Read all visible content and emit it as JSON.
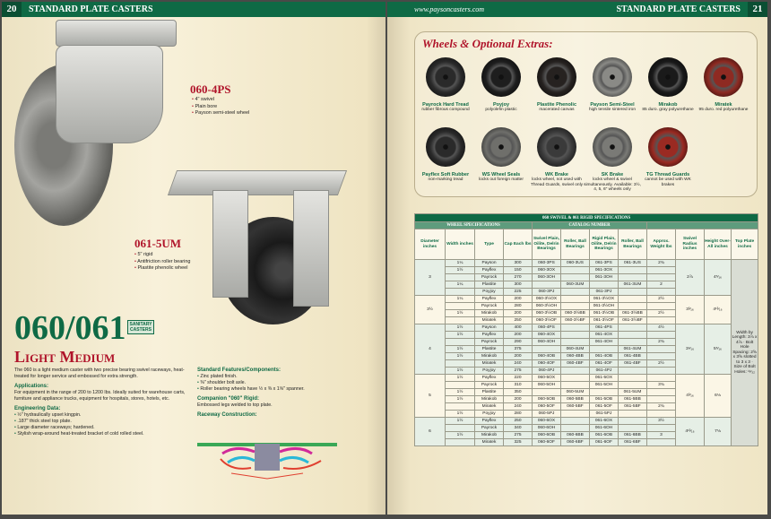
{
  "left_page": {
    "page_number": "20",
    "header": "STANDARD PLATE CASTERS",
    "model_a": {
      "code": "060-4PS",
      "bullets": [
        "4\" swivel",
        "Plain bore",
        "Payson semi-steel wheel"
      ]
    },
    "model_b": {
      "code": "061-5UM",
      "bullets": [
        "5\" rigid",
        "Antifriction roller bearing",
        "Plastite phenolic wheel"
      ]
    },
    "series": "060/061",
    "badge": "SANITARY CASTERS",
    "subtitle": "Light Medium",
    "intro": "The 060 is a light medium caster with two precise bearing swivel raceways, heat-treated for longer service and embossed for extra strength.",
    "applications_heading": "Applications:",
    "applications": "For equipment in the range of 200 to 1200 lbs. Ideally suited for warehouse carts, furniture and appliance trucks, equipment for hospitals, stores, hotels, etc.",
    "engineering_heading": "Engineering Data:",
    "engineering": [
      "½\" hydraulically upset kingpin.",
      ".187\" thick steel top plate.",
      "Large diameter raceways; hardened.",
      "Stylish wrap-around heat-treated bracket of cold rolled steel."
    ],
    "features_heading": "Standard Features/Components:",
    "features": [
      "Zinc plated finish.",
      "⅜\" shoulder bolt axle.",
      "Roller bearing wheels have ½ x ⅜ x 1⅝\" spanner."
    ],
    "companion_heading": "Companion \"060\" Rigid:",
    "companion": "Embossed legs welded to top plate.",
    "raceway_heading": "Raceway Construction:"
  },
  "right_page": {
    "url": "www.paysoncasters.com",
    "header": "STANDARD PLATE CASTERS",
    "page_number": "21",
    "wheels_title": "Wheels & Optional Extras:",
    "wheels": [
      {
        "name": "Payrock Hard Tread",
        "desc": "rubber fibrous compound",
        "color": "#2a2a2a"
      },
      {
        "name": "Poyjoy",
        "desc": "polyolefin plastic",
        "color": "#1e1e1e"
      },
      {
        "name": "Plastite Phenolic",
        "desc": "macerated canvas",
        "color": "#262220"
      },
      {
        "name": "Payson Semi-Steel",
        "desc": "high tensile sintered iron",
        "color": "#8a8a86"
      },
      {
        "name": "Mirakob",
        "desc": "85 duro. gray polyurethane",
        "color": "#1a1a1a"
      },
      {
        "name": "Miratek",
        "desc": "95 duro. red polyurethane",
        "color": "#8e2a22"
      },
      {
        "name": "Payflex Soft Rubber",
        "desc": "non-marking tread",
        "color": "#2a2a2a"
      },
      {
        "name": "WS Wheel Seals",
        "desc": "locks out foreign matter",
        "color": "#6f6f6b"
      },
      {
        "name": "WK Brake",
        "desc": "locks wheel, not used with Thread Guards, swivel only",
        "color": "#3a3a3a"
      },
      {
        "name": "SK Brake",
        "desc": "locks wheel & swivel simultaneously. Available: 3½, 4, 5, 6\" wheels only",
        "color": "#7a7a76"
      },
      {
        "name": "TG Thread Guards",
        "desc": "cannot be used with WK brakes",
        "color": "#9a2a22"
      }
    ],
    "table": {
      "title": "060 SWIVEL & 061 RIGID SPECIFICATIONS",
      "group_wheel": "WHEEL SPECIFICATIONS",
      "group_catalog": "CATALOG NUMBER",
      "columns": [
        "Diameter inches",
        "Width inches",
        "Type",
        "Cap Each lbs",
        "Swivel Plain, Oilite, Delrin Bearings",
        "Roller, Ball Bearings",
        "Rigid Plain, Oilite, Delrin Bearings",
        "Roller, Ball Bearings",
        "Approx. Weight lbs",
        "Swivel Radius inches",
        "Height Over-All inches",
        "Top Plate inches"
      ],
      "top_plate": "Width by Length: 3⅞ x 4⅞ · Bolt Hole Spacing: 2⅝ x 3⅝ slotted to 3 x 3 · Size of Bolt Holes: ¹¹⁄₃₂",
      "groups": [
        {
          "diameter": "3",
          "radius": "2⅞",
          "height": "4⁵⁄₁₆",
          "rows": [
            [
              "1¼",
              "Payson",
              "300",
              "060-3PS",
              "060-3US",
              "061-3PS",
              "061-3US",
              "2¾"
            ],
            [
              "1½",
              "Payflex",
              "150",
              "060-3OX",
              "",
              "061-3OX",
              "",
              ""
            ],
            [
              "",
              "Payrock",
              "270",
              "060-3OH",
              "",
              "061-3OH",
              "",
              ""
            ],
            [
              "1¼",
              "Plastite",
              "300",
              "",
              "060-3UM",
              "",
              "061-3UM",
              "2"
            ],
            [
              "",
              "Poyjoy",
              "225",
              "060-3PJ",
              "",
              "061-3PJ",
              "",
              ""
            ]
          ]
        },
        {
          "diameter": "3½",
          "radius": "3³⁄₁₆",
          "height": "4¹³⁄₁₆",
          "rows": [
            [
              "1¼",
              "Payflex",
              "200",
              "060-3½OX",
              "",
              "061-3½OX",
              "",
              "2½"
            ],
            [
              "",
              "Payrock",
              "280",
              "060-3½OH",
              "",
              "061-3½OH",
              "",
              ""
            ],
            [
              "1½",
              "Mirakob",
              "200",
              "060-3½OB",
              "060-3½BB",
              "061-3½OB",
              "061-3½BB",
              "2½"
            ],
            [
              "",
              "Miratek",
              "250",
              "060-3½OF",
              "060-3½BF",
              "061-3½OF",
              "061-3½BF",
              ""
            ]
          ]
        },
        {
          "diameter": "4",
          "radius": "3⁹⁄₁₆",
          "height": "5⁵⁄₁₆",
          "rows": [
            [
              "1½",
              "Payson",
              "400",
              "060-4PS",
              "",
              "061-4PS",
              "",
              "4½"
            ],
            [
              "1½",
              "Payflex",
              "200",
              "060-4OX",
              "",
              "061-4OX",
              "",
              ""
            ],
            [
              "",
              "Payrock",
              "290",
              "060-4OH",
              "",
              "061-4OH",
              "",
              "2¾"
            ],
            [
              "1½",
              "Plastite",
              "375",
              "",
              "060-4UM",
              "",
              "061-4UM",
              ""
            ],
            [
              "1½",
              "Mirakob",
              "200",
              "060-4OB",
              "060-4BB",
              "061-4OB",
              "061-4BB",
              ""
            ],
            [
              "",
              "Miratek",
              "240",
              "060-4OF",
              "060-4BF",
              "061-4OF",
              "061-4BF",
              "2½"
            ],
            [
              "1½",
              "Poyjoy",
              "275",
              "060-4PJ",
              "",
              "061-4PJ",
              "",
              ""
            ]
          ]
        },
        {
          "diameter": "5",
          "radius": "4³⁄₁₆",
          "height": "6⅛",
          "rows": [
            [
              "1½",
              "Payflex",
              "220",
              "060-5OX",
              "",
              "061-5OX",
              "",
              ""
            ],
            [
              "",
              "Payrock",
              "310",
              "060-5OH",
              "",
              "061-5OH",
              "",
              "3¾"
            ],
            [
              "1½",
              "Plastite",
              "350",
              "",
              "060-5UM",
              "",
              "061-5UM",
              ""
            ],
            [
              "1½",
              "Mirakob",
              "200",
              "060-5OB",
              "060-5BB",
              "061-5OB",
              "061-5BB",
              ""
            ],
            [
              "",
              "Miratek",
              "240",
              "060-5OF",
              "060-5BF",
              "061-5OF",
              "061-5BF",
              "2¾"
            ],
            [
              "1½",
              "Poyjoy",
              "280",
              "060-5PJ",
              "",
              "061-5PJ",
              "",
              ""
            ]
          ]
        },
        {
          "diameter": "6",
          "radius": "4¹³⁄₁₆",
          "height": "7⅛",
          "rows": [
            [
              "1½",
              "Payflex",
              "250",
              "060-6OX",
              "",
              "061-6OX",
              "",
              "3½"
            ],
            [
              "",
              "Payrock",
              "340",
              "060-6OH",
              "",
              "061-6OH",
              "",
              ""
            ],
            [
              "1½",
              "Mirakob",
              "275",
              "060-6OB",
              "060-6BB",
              "061-6OB",
              "061-6BB",
              "3"
            ],
            [
              "",
              "Miratek",
              "325",
              "060-6OF",
              "060-6BF",
              "061-6OF",
              "061-6BF",
              ""
            ]
          ]
        }
      ]
    }
  },
  "colors": {
    "brand_green": "#0f6a45",
    "accent_red": "#b0142a"
  }
}
